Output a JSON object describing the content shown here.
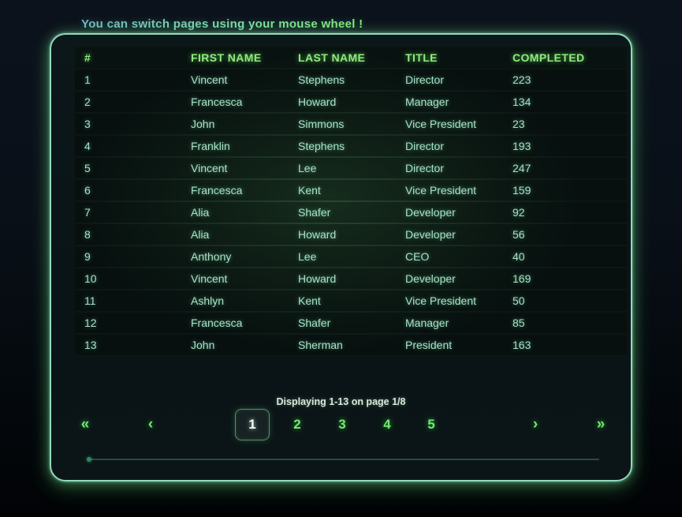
{
  "hint": "You can switch pages using your mouse wheel !",
  "table": {
    "fields": [
      "num",
      "first",
      "last",
      "title",
      "completed"
    ],
    "headers": [
      "#",
      "FIRST NAME",
      "LAST NAME",
      "TITLE",
      "COMPLETED"
    ],
    "rows": [
      {
        "num": "1",
        "first": "Vincent",
        "last": "Stephens",
        "title": "Director",
        "completed": "223"
      },
      {
        "num": "2",
        "first": "Francesca",
        "last": "Howard",
        "title": "Manager",
        "completed": "134"
      },
      {
        "num": "3",
        "first": "John",
        "last": "Simmons",
        "title": "Vice President",
        "completed": "23"
      },
      {
        "num": "4",
        "first": "Franklin",
        "last": "Stephens",
        "title": "Director",
        "completed": "193"
      },
      {
        "num": "5",
        "first": "Vincent",
        "last": "Lee",
        "title": "Director",
        "completed": "247"
      },
      {
        "num": "6",
        "first": "Francesca",
        "last": "Kent",
        "title": "Vice President",
        "completed": "159"
      },
      {
        "num": "7",
        "first": "Alia",
        "last": "Shafer",
        "title": "Developer",
        "completed": "92"
      },
      {
        "num": "8",
        "first": "Alia",
        "last": "Howard",
        "title": "Developer",
        "completed": "56"
      },
      {
        "num": "9",
        "first": "Anthony",
        "last": "Lee",
        "title": "CEO",
        "completed": "40"
      },
      {
        "num": "10",
        "first": "Vincent",
        "last": "Howard",
        "title": "Developer",
        "completed": "169"
      },
      {
        "num": "11",
        "first": "Ashlyn",
        "last": "Kent",
        "title": "Vice President",
        "completed": "50"
      },
      {
        "num": "12",
        "first": "Francesca",
        "last": "Shafer",
        "title": "Manager",
        "completed": "85"
      },
      {
        "num": "13",
        "first": "John",
        "last": "Sherman",
        "title": "President",
        "completed": "163"
      }
    ]
  },
  "pagination": {
    "status": "Displaying 1-13 on page 1/8",
    "first_label": "«",
    "prev_label": "‹",
    "next_label": "›",
    "last_label": "»",
    "pages": [
      "1",
      "2",
      "3",
      "4",
      "5"
    ],
    "active_page": "1",
    "page_centers": [
      255,
      312,
      369,
      426,
      482
    ],
    "first_center": 43,
    "prev_center": 126,
    "next_center": 614,
    "last_center": 697
  },
  "colors": {
    "header_green": "#8deb7d",
    "row_text": "#a5e2c6",
    "page_green": "#6fe96f",
    "active_page_text": "#f2fbf4",
    "panel_border": "#8fd9bf"
  }
}
